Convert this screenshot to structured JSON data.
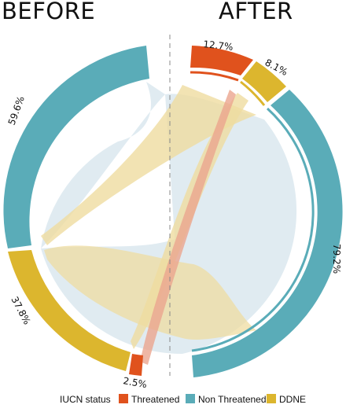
{
  "titles": {
    "before": "BEFORE",
    "after": "AFTER"
  },
  "colors": {
    "threatened": "#e0521d",
    "non_threatened": "#5aacb8",
    "ddne": "#dcb62e",
    "ribbon_non_threatened": "#dbe8ee",
    "ribbon_ddne": "#efdca0",
    "ribbon_threatened": "#eba58e",
    "divider": "#888888"
  },
  "before": {
    "non_threatened": "59.6%",
    "ddne": "37.8%",
    "threatened": "2.5%"
  },
  "after": {
    "threatened": "12.7%",
    "ddne": "8.1%",
    "non_threatened": "79.2%"
  },
  "legend": {
    "title": "IUCN status",
    "items": [
      {
        "label": "Threatened",
        "color": "#e0521d"
      },
      {
        "label": "Non Threatened",
        "color": "#5aacb8"
      },
      {
        "label": "DDNE",
        "color": "#dcb62e"
      }
    ]
  }
}
